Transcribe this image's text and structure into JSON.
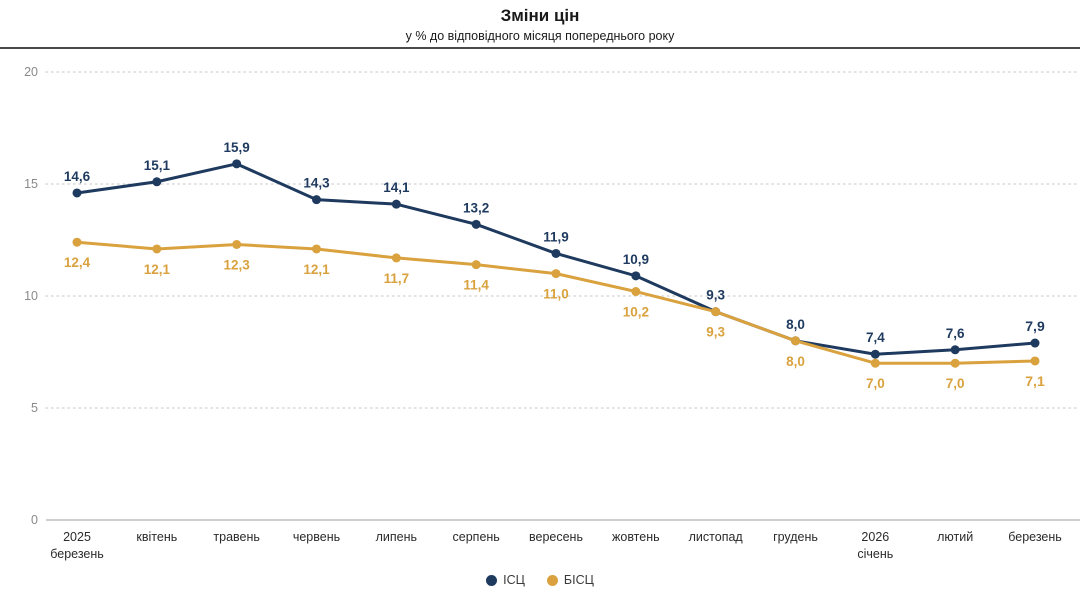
{
  "chart_data": {
    "type": "line",
    "title": "Зміни цін",
    "subtitle": "у % до відповідного місяця попереднього року",
    "categories": [
      [
        "2025",
        "березень"
      ],
      [
        "квітень"
      ],
      [
        "травень"
      ],
      [
        "червень"
      ],
      [
        "липень"
      ],
      [
        "серпень"
      ],
      [
        "вересень"
      ],
      [
        "жовтень"
      ],
      [
        "листопад"
      ],
      [
        "грудень"
      ],
      [
        "2026",
        "січень"
      ],
      [
        "лютий"
      ],
      [
        "березень"
      ]
    ],
    "series": [
      {
        "name": "ІСЦ",
        "color": "#1f3a5f",
        "values": [
          14.6,
          15.1,
          15.9,
          14.3,
          14.1,
          13.2,
          11.9,
          10.9,
          9.3,
          8.0,
          7.4,
          7.6,
          7.9
        ],
        "label_position": "above"
      },
      {
        "name": "БІСЦ",
        "color": "#d9a23e",
        "values": [
          12.4,
          12.1,
          12.3,
          12.1,
          11.7,
          11.4,
          11.0,
          10.2,
          9.3,
          8.0,
          7.0,
          7.0,
          7.1
        ],
        "label_position": "below"
      }
    ],
    "xlabel": "",
    "ylabel": "",
    "ylim": [
      0,
      20
    ],
    "yticks": [
      0,
      5,
      10,
      15,
      20
    ],
    "decimal_separator": ",",
    "grid": "horizontal-dotted",
    "legend_position": "bottom-center",
    "last_point_bold": true,
    "colors": {
      "axis_text": "#8a8a8a",
      "category_text": "#2b2b2b",
      "gridline": "#d9d9d9",
      "baseline": "#cfcfcf",
      "header_rule": "#4a4a4a"
    }
  }
}
